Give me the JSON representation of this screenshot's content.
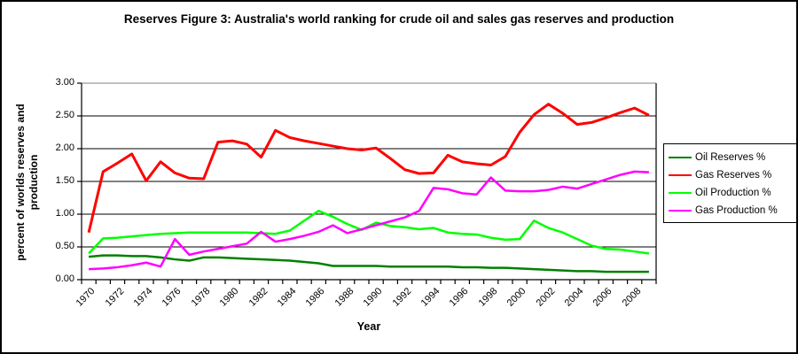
{
  "chart_data": {
    "type": "line",
    "title": "Reserves Figure 3: Australia's world ranking for crude oil and sales gas reserves and production",
    "xlabel": "Year",
    "ylabel": "percent of worlds reserves and production",
    "ylim": [
      0.0,
      3.0
    ],
    "ytick_step": 0.5,
    "ytick_labels": [
      "0.00",
      "0.50",
      "1.00",
      "1.50",
      "2.00",
      "2.50",
      "3.00"
    ],
    "grid": true,
    "legend_position": "right",
    "x_tick_label_interval": 2,
    "x": [
      1970,
      1971,
      1972,
      1973,
      1974,
      1975,
      1976,
      1977,
      1978,
      1979,
      1980,
      1981,
      1982,
      1983,
      1984,
      1985,
      1986,
      1987,
      1988,
      1989,
      1990,
      1991,
      1992,
      1993,
      1994,
      1995,
      1996,
      1997,
      1998,
      1999,
      2000,
      2001,
      2002,
      2003,
      2004,
      2005,
      2006,
      2007,
      2008,
      2009
    ],
    "series": [
      {
        "name": "Oil Reserves %",
        "color": "#008000",
        "values": [
          0.35,
          0.37,
          0.37,
          0.36,
          0.36,
          0.34,
          0.31,
          0.29,
          0.34,
          0.34,
          0.33,
          0.32,
          0.31,
          0.3,
          0.29,
          0.27,
          0.25,
          0.21,
          0.21,
          0.21,
          0.21,
          0.2,
          0.2,
          0.2,
          0.2,
          0.2,
          0.19,
          0.19,
          0.18,
          0.18,
          0.17,
          0.16,
          0.15,
          0.14,
          0.13,
          0.13,
          0.12,
          0.12,
          0.12,
          0.12
        ]
      },
      {
        "name": "Gas Reserves %",
        "color": "#ff0000",
        "values": [
          0.72,
          1.65,
          1.78,
          1.92,
          1.51,
          1.8,
          1.63,
          1.55,
          1.54,
          2.1,
          2.12,
          2.07,
          1.87,
          2.28,
          2.17,
          2.12,
          2.08,
          2.04,
          2.0,
          1.98,
          2.01,
          1.85,
          1.68,
          1.62,
          1.63,
          1.9,
          1.8,
          1.77,
          1.75,
          1.88,
          2.25,
          2.52,
          2.68,
          2.54,
          2.37,
          2.4,
          2.47,
          2.55,
          2.62,
          2.51
        ]
      },
      {
        "name": "Oil Production %",
        "color": "#00ff00",
        "values": [
          0.4,
          0.63,
          0.64,
          0.66,
          0.68,
          0.7,
          0.71,
          0.72,
          0.72,
          0.72,
          0.72,
          0.72,
          0.71,
          0.7,
          0.75,
          0.9,
          1.05,
          0.96,
          0.85,
          0.76,
          0.87,
          0.82,
          0.8,
          0.77,
          0.79,
          0.72,
          0.7,
          0.69,
          0.64,
          0.61,
          0.62,
          0.9,
          0.79,
          0.72,
          0.62,
          0.52,
          0.47,
          0.46,
          0.43,
          0.4
        ]
      },
      {
        "name": "Gas Production %",
        "color": "#ff00ff",
        "values": [
          0.16,
          0.17,
          0.19,
          0.22,
          0.26,
          0.2,
          0.62,
          0.38,
          0.43,
          0.47,
          0.51,
          0.55,
          0.73,
          0.58,
          0.62,
          0.67,
          0.73,
          0.83,
          0.71,
          0.77,
          0.83,
          0.89,
          0.95,
          1.05,
          1.4,
          1.38,
          1.32,
          1.3,
          1.56,
          1.36,
          1.35,
          1.35,
          1.37,
          1.42,
          1.39,
          1.46,
          1.53,
          1.6,
          1.65,
          1.64
        ]
      }
    ]
  }
}
